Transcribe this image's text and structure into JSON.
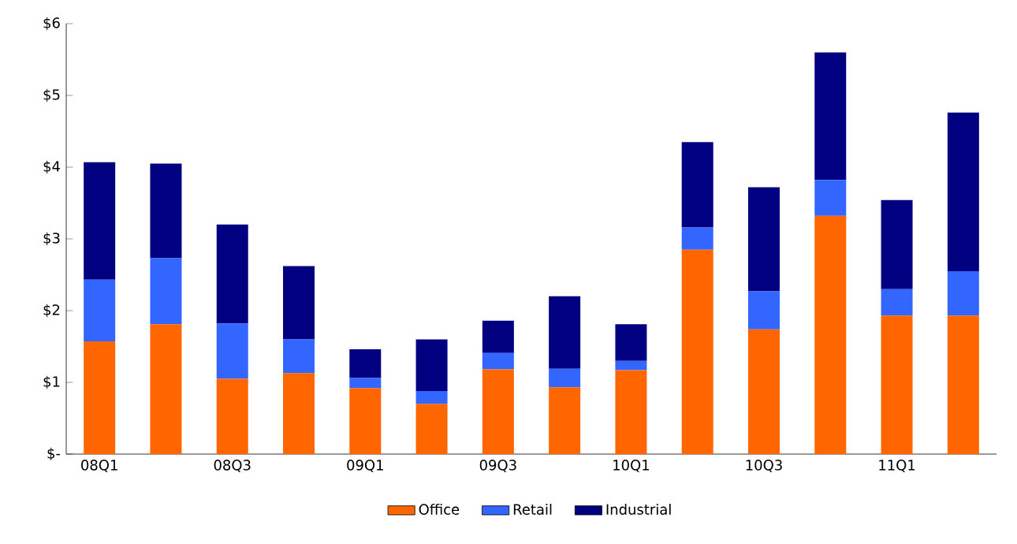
{
  "chart_data": {
    "type": "bar",
    "stacked": true,
    "legend": "bottom",
    "categories": [
      "08Q1",
      null,
      "08Q3",
      null,
      "09Q1",
      null,
      "09Q3",
      null,
      "10Q1",
      null,
      "10Q3",
      null,
      "11Q1",
      null
    ],
    "series": [
      {
        "name": "Office",
        "color": "#ff6600",
        "values": [
          1.57,
          1.81,
          1.05,
          1.13,
          0.92,
          0.7,
          1.18,
          0.93,
          1.17,
          2.85,
          1.74,
          3.32,
          1.93,
          1.93
        ]
      },
      {
        "name": "Retail",
        "color": "#3366ff",
        "values": [
          0.86,
          0.92,
          0.77,
          0.47,
          0.14,
          0.18,
          0.23,
          0.26,
          0.13,
          0.31,
          0.53,
          0.5,
          0.37,
          0.62
        ]
      },
      {
        "name": "Industrial",
        "color": "#000080",
        "values": [
          1.64,
          1.32,
          1.38,
          1.02,
          0.4,
          0.72,
          0.45,
          1.01,
          0.51,
          1.19,
          1.45,
          1.78,
          1.24,
          2.21
        ]
      }
    ],
    "ylim": [
      0,
      6
    ],
    "yticks": [
      {
        "value": 0,
        "label": "$-"
      },
      {
        "value": 1,
        "label": "$1"
      },
      {
        "value": 2,
        "label": "$2"
      },
      {
        "value": 3,
        "label": "$3"
      },
      {
        "value": 4,
        "label": "$4"
      },
      {
        "value": 5,
        "label": "$5"
      },
      {
        "value": 6,
        "label": "$6"
      }
    ]
  }
}
